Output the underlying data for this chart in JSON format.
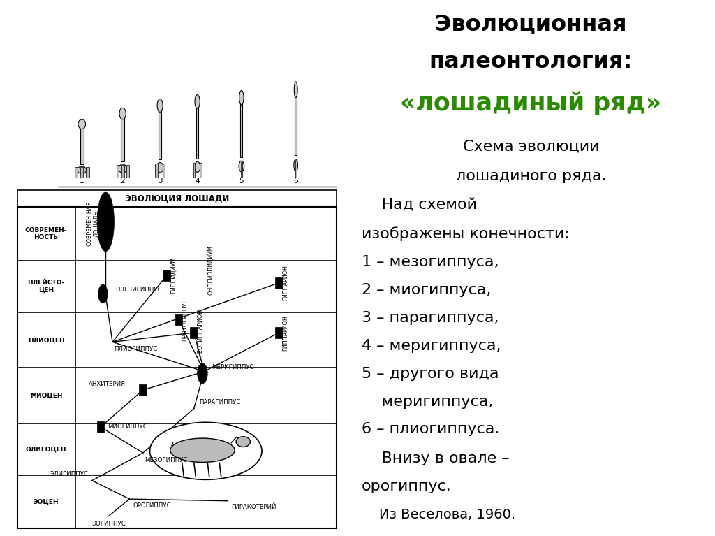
{
  "title_line1": "Эволюционная",
  "title_line2": "палеонтология:",
  "title_green": "«лошадиный ряд»",
  "background_color": "#ffffff",
  "text_color": "#000000",
  "green_color": "#2a8a00"
}
